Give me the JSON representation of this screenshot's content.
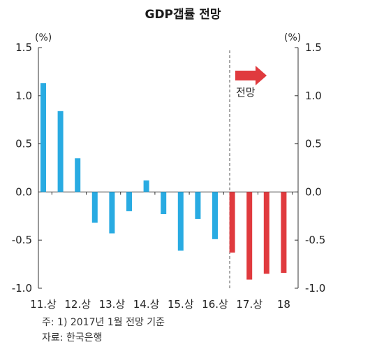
{
  "chart_data": {
    "type": "bar",
    "title": "GDP갭률 전망",
    "unit_left": "(%)",
    "unit_right": "(%)",
    "ylim": [
      -1.0,
      1.5
    ],
    "yticks": [
      "1.5",
      "1.0",
      "0.5",
      "0.0",
      "-0.5",
      "-1.0"
    ],
    "yticks_right": [
      "1.5",
      "1.0",
      "0.5",
      "0.0",
      "-0.5",
      "-1.0"
    ],
    "xtick_labels": [
      "11.상",
      "12.상",
      "13.상",
      "14.상",
      "15.상",
      "16.상",
      "17.상",
      "18"
    ],
    "series": [
      {
        "values": [
          1.13,
          0.84,
          0.35,
          -0.32,
          -0.43,
          -0.2,
          0.12,
          -0.23,
          -0.61,
          -0.28,
          -0.49
        ],
        "color": "#29abe2"
      },
      {
        "values": [
          -0.63,
          -0.91,
          -0.85,
          -0.84
        ],
        "color": "#e03a3e"
      }
    ],
    "forecast_label": "전망",
    "grid": false,
    "colors": {
      "actual": "#29abe2",
      "forecast": "#e03a3e",
      "arrow": "#e03a3e",
      "divider": "#555555"
    }
  },
  "notes": {
    "line1": "주: 1) 2017년 1월 전망 기준",
    "line2": "자료: 한국은행"
  }
}
